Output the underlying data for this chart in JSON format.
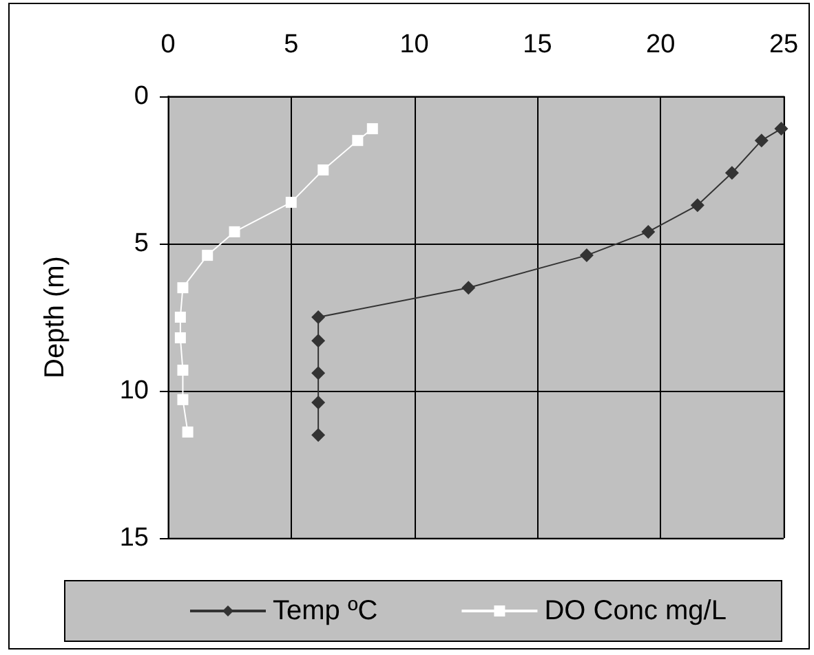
{
  "chart_data": {
    "type": "line",
    "ylabel": "Depth (m)",
    "xlim": [
      0,
      25
    ],
    "xticks": [
      0,
      5,
      10,
      15,
      20,
      25
    ],
    "ylim": [
      15,
      0
    ],
    "yticks": [
      0,
      5,
      10,
      15
    ],
    "grid": true,
    "legend": "bottom",
    "series": [
      {
        "name": "Temp ºC",
        "color": "#333333",
        "marker": "diamond",
        "x": [
          24.9,
          24.1,
          22.9,
          21.5,
          19.5,
          17.0,
          12.2,
          6.1,
          6.1,
          6.1,
          6.1,
          6.1
        ],
        "values": [
          1.1,
          1.5,
          2.6,
          3.7,
          4.6,
          5.4,
          6.5,
          7.5,
          8.3,
          9.4,
          10.4,
          11.5
        ]
      },
      {
        "name": "DO Conc mg/L",
        "color": "#ffffff",
        "marker": "square",
        "x": [
          8.3,
          7.7,
          6.3,
          5.0,
          2.7,
          1.6,
          0.6,
          0.5,
          0.5,
          0.6,
          0.6,
          0.8
        ],
        "values": [
          1.1,
          1.5,
          2.5,
          3.6,
          4.6,
          5.4,
          6.5,
          7.5,
          8.2,
          9.3,
          10.3,
          11.4
        ]
      }
    ]
  }
}
